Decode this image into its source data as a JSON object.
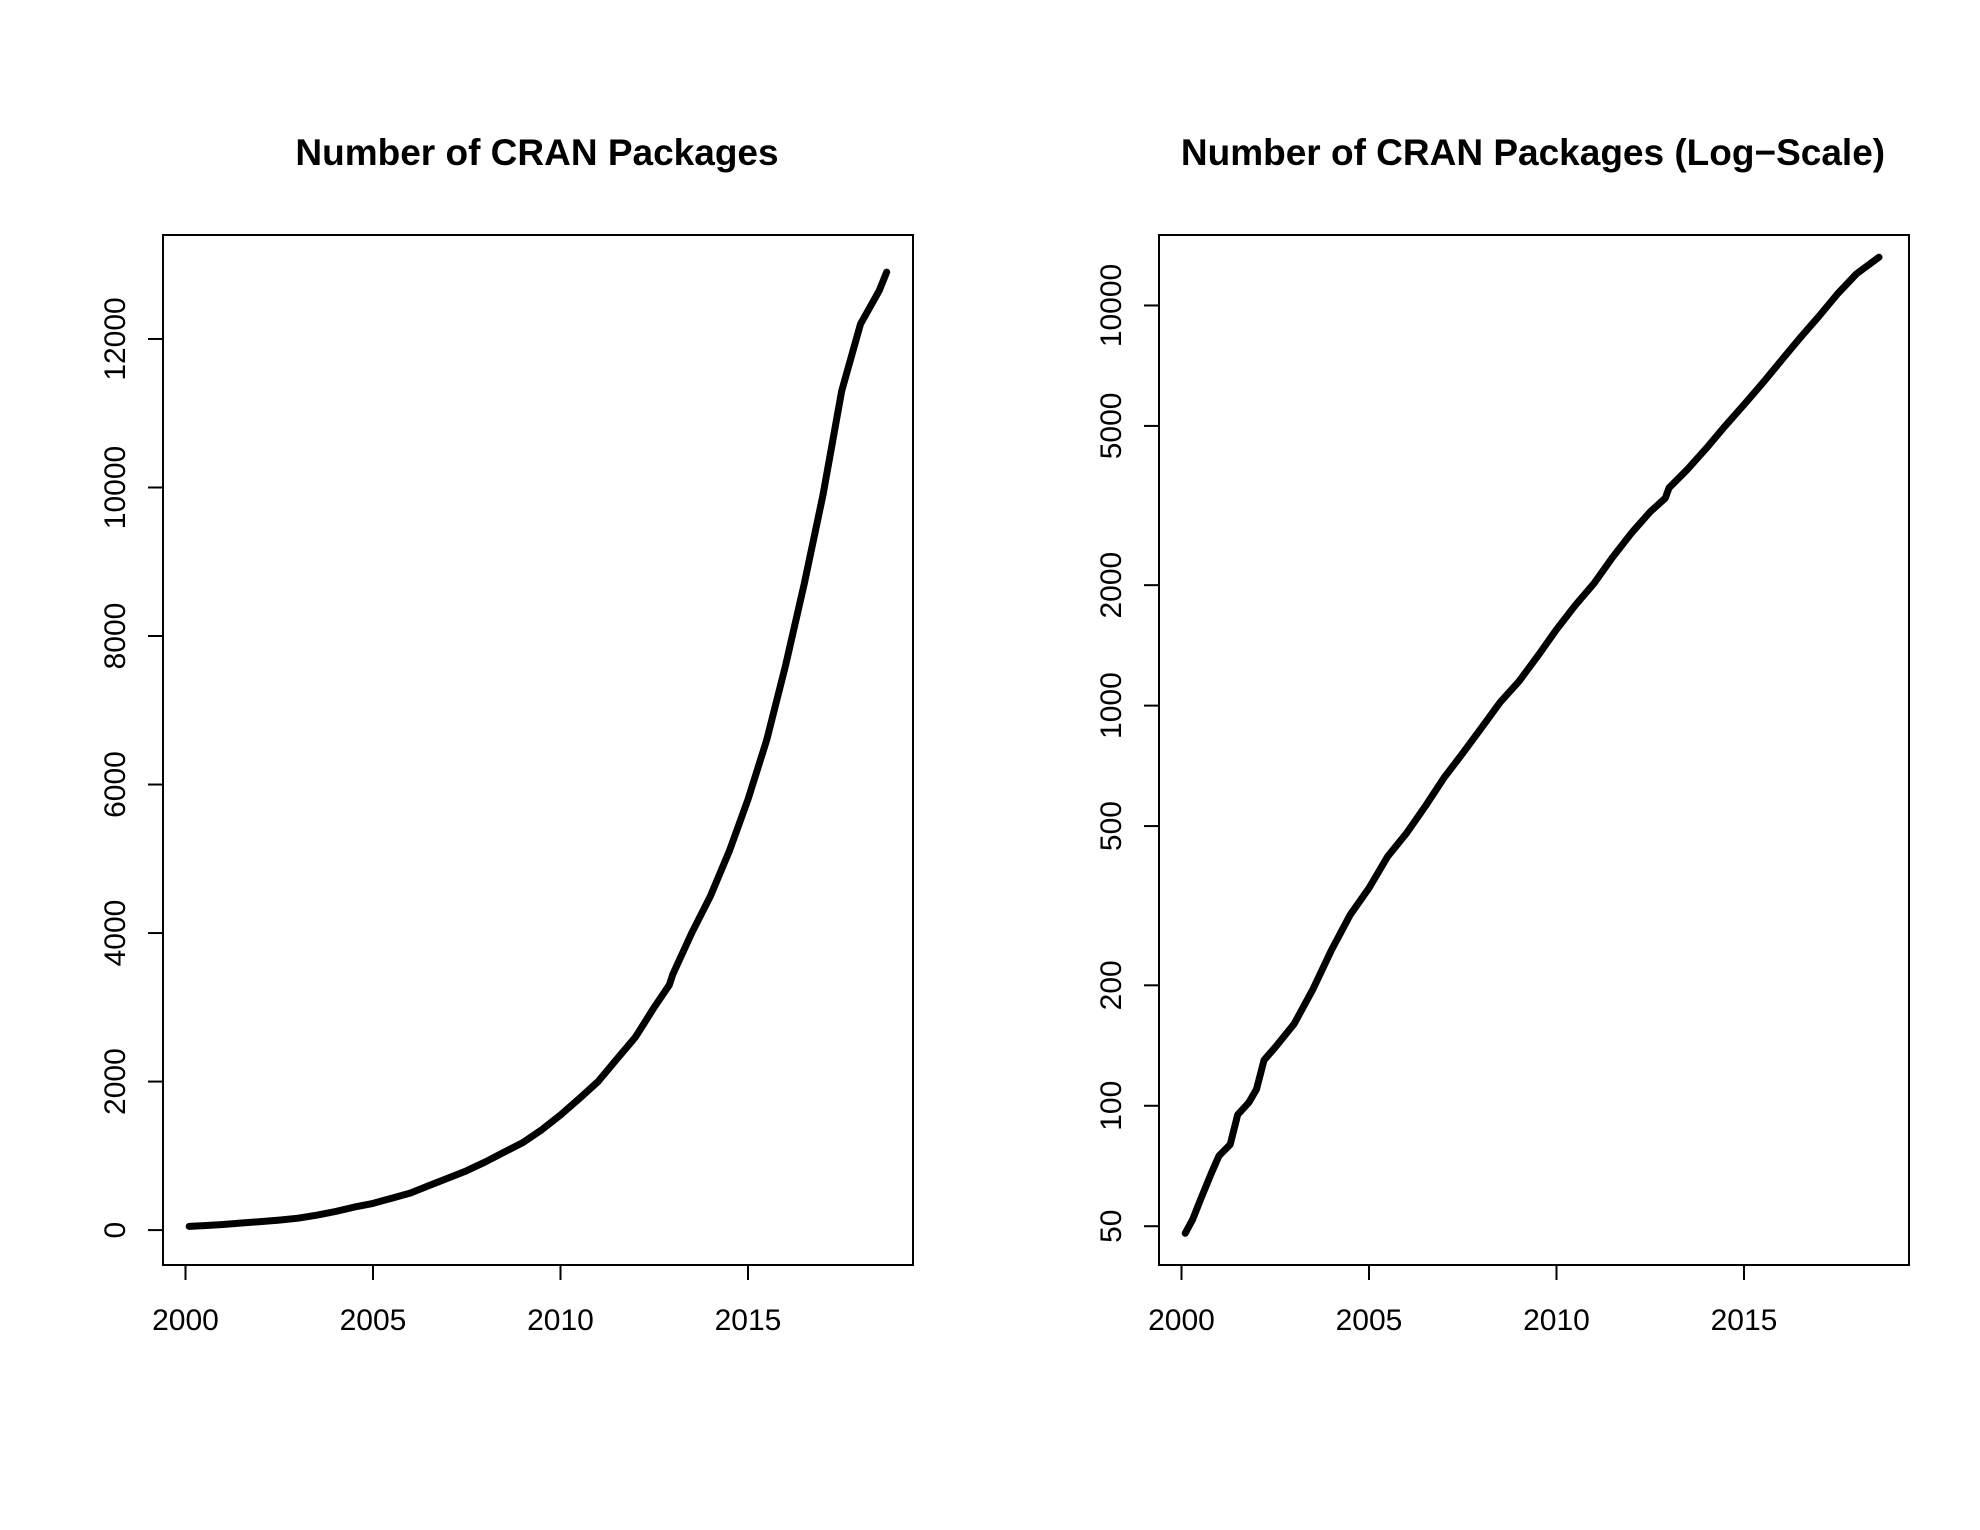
{
  "chart_data": [
    {
      "type": "line",
      "title": "Number of CRAN Packages",
      "xlabel": "",
      "ylabel": "",
      "xlim": [
        1999.4,
        2019.4
      ],
      "ylim": [
        -470,
        13400
      ],
      "y_scale": "linear",
      "grid": false,
      "x_ticks": [
        2000,
        2005,
        2010,
        2015
      ],
      "x_tick_labels": [
        "2000",
        "2005",
        "2010",
        "2015"
      ],
      "y_ticks": [
        0,
        2000,
        4000,
        6000,
        8000,
        10000,
        12000
      ],
      "y_tick_labels": [
        "0",
        "2000",
        "4000",
        "6000",
        "8000",
        "10000",
        "12000"
      ],
      "series": [
        {
          "color": "#000000",
          "x": [
            2000.1,
            2000.5,
            2001.0,
            2001.5,
            2002.0,
            2002.5,
            2003.0,
            2003.5,
            2004.0,
            2004.5,
            2005.0,
            2005.5,
            2006.0,
            2006.5,
            2007.0,
            2007.5,
            2008.0,
            2008.5,
            2009.0,
            2009.5,
            2010.0,
            2010.5,
            2011.0,
            2011.5,
            2012.0,
            2012.5,
            2012.9,
            2013.0,
            2013.5,
            2014.0,
            2014.5,
            2015.0,
            2015.5,
            2016.0,
            2016.5,
            2017.0,
            2017.5,
            2018.0,
            2018.5,
            2018.7
          ],
          "y": [
            50,
            60,
            75,
            95,
            115,
            135,
            160,
            200,
            250,
            310,
            360,
            430,
            500,
            600,
            700,
            800,
            920,
            1050,
            1180,
            1350,
            1550,
            1770,
            2000,
            2300,
            2600,
            3000,
            3300,
            3450,
            4000,
            4500,
            5100,
            5800,
            6600,
            7600,
            8700,
            9900,
            11300,
            12200,
            12650,
            12900
          ]
        }
      ]
    },
    {
      "type": "line",
      "title": "Number of CRAN Packages (Log−Scale)",
      "xlabel": "",
      "ylabel": "",
      "xlim": [
        1999.4,
        2019.4
      ],
      "ylim": [
        40,
        15000
      ],
      "y_scale": "log",
      "grid": false,
      "x_ticks": [
        2000,
        2005,
        2010,
        2015
      ],
      "x_tick_labels": [
        "2000",
        "2005",
        "2010",
        "2015"
      ],
      "y_ticks": [
        50,
        100,
        200,
        500,
        1000,
        2000,
        5000,
        10000
      ],
      "y_tick_labels": [
        "50",
        "100",
        "200",
        "500",
        "1000",
        "2000",
        "5000",
        "10000"
      ],
      "series": [
        {
          "color": "#000000",
          "x": [
            2000.1,
            2000.3,
            2000.5,
            2000.8,
            2001.0,
            2001.3,
            2001.5,
            2001.8,
            2002.0,
            2002.2,
            2002.5,
            2003.0,
            2003.5,
            2004.0,
            2004.5,
            2005.0,
            2005.5,
            2006.0,
            2006.5,
            2007.0,
            2007.5,
            2008.0,
            2008.5,
            2009.0,
            2009.5,
            2010.0,
            2010.5,
            2011.0,
            2011.5,
            2012.0,
            2012.5,
            2012.9,
            2013.0,
            2013.5,
            2014.0,
            2014.5,
            2015.0,
            2015.5,
            2016.0,
            2016.5,
            2017.0,
            2017.5,
            2018.0,
            2018.6
          ],
          "y": [
            48,
            52,
            58,
            68,
            75,
            80,
            95,
            102,
            110,
            130,
            140,
            160,
            195,
            245,
            300,
            350,
            420,
            480,
            560,
            660,
            760,
            880,
            1020,
            1150,
            1330,
            1550,
            1780,
            2020,
            2350,
            2700,
            3050,
            3300,
            3500,
            3900,
            4400,
            5000,
            5650,
            6400,
            7300,
            8300,
            9400,
            10700,
            12000,
            13200
          ]
        }
      ]
    }
  ]
}
